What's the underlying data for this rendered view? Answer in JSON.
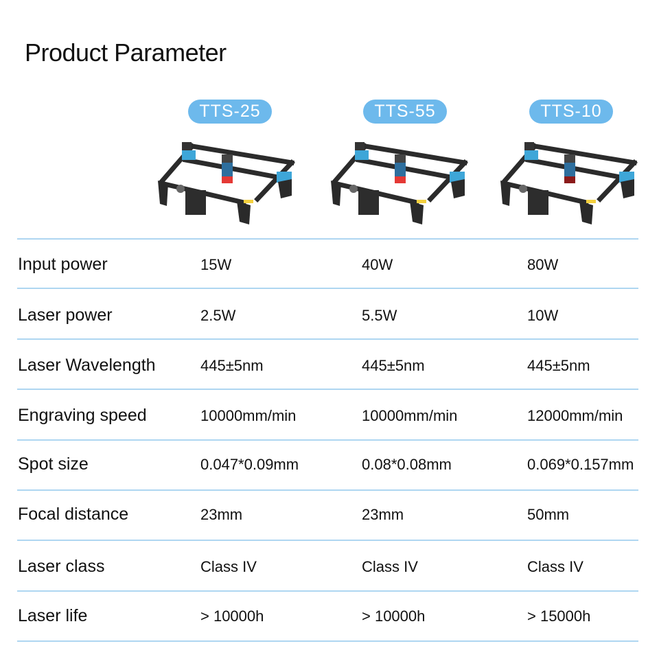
{
  "title": "Product Parameter",
  "models": [
    {
      "name": "TTS-25",
      "head_color": "#e53935",
      "image_icon": "laser-engraver"
    },
    {
      "name": "TTS-55",
      "head_color": "#e53935",
      "image_icon": "laser-engraver"
    },
    {
      "name": "TTS-10",
      "head_color": "#8b1a1a",
      "image_icon": "laser-engraver"
    }
  ],
  "colors": {
    "accent": "#6db9ec",
    "divider": "#aed6f1"
  },
  "rows": [
    {
      "label": "Input power",
      "values": [
        "15W",
        "40W",
        "80W"
      ]
    },
    {
      "label": "Laser power",
      "values": [
        "2.5W",
        "5.5W",
        "10W"
      ]
    },
    {
      "label": "Laser Wavelength",
      "values": [
        "445±5nm",
        "445±5nm",
        "445±5nm"
      ]
    },
    {
      "label": "Engraving speed",
      "values": [
        "10000mm/min",
        "10000mm/min",
        "12000mm/min"
      ]
    },
    {
      "label": "Spot size",
      "values": [
        "0.047*0.09mm",
        "0.08*0.08mm",
        "0.069*0.157mm"
      ]
    },
    {
      "label": "Focal distance",
      "values": [
        "23mm",
        "23mm",
        "50mm"
      ]
    },
    {
      "label": "Laser class",
      "values": [
        "Class IV",
        "Class IV",
        "Class IV"
      ]
    },
    {
      "label": "Laser life",
      "values": [
        "> 10000h",
        "> 10000h",
        "> 15000h"
      ]
    }
  ]
}
